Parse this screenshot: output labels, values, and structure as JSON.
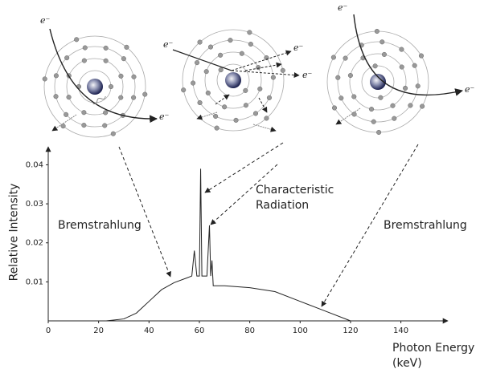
{
  "chart_data": {
    "type": "line",
    "x_label": "Photon Energy (keV)",
    "y_label": "Relative Intensity",
    "x": [
      23,
      30,
      35,
      40,
      45,
      50,
      55,
      57,
      58,
      59,
      60,
      60.5,
      61,
      63,
      64,
      64.5,
      65,
      65.5,
      70,
      80,
      90,
      100,
      110,
      120
    ],
    "values": [
      0,
      0.0005,
      0.002,
      0.005,
      0.008,
      0.0098,
      0.011,
      0.0115,
      0.018,
      0.0115,
      0.0115,
      0.039,
      0.0115,
      0.0115,
      0.0245,
      0.0115,
      0.0155,
      0.009,
      0.009,
      0.0085,
      0.0075,
      0.005,
      0.0025,
      0
    ],
    "color": "#222222",
    "xlim": [
      0,
      158
    ],
    "ylim": [
      0,
      0.044
    ],
    "xticks": [
      0,
      20,
      40,
      60,
      80,
      100,
      120,
      140
    ],
    "yticks": [
      0.01,
      0.02,
      0.03,
      0.04
    ],
    "grid": false,
    "annotations": [
      "Bremstrahlung",
      "Characteristic Radiation",
      "Bremstrahlung"
    ]
  },
  "electron_labels": [
    "e⁻",
    "e⁻",
    "e⁻",
    "e⁻",
    "e⁻",
    "e⁻",
    "e⁻"
  ]
}
